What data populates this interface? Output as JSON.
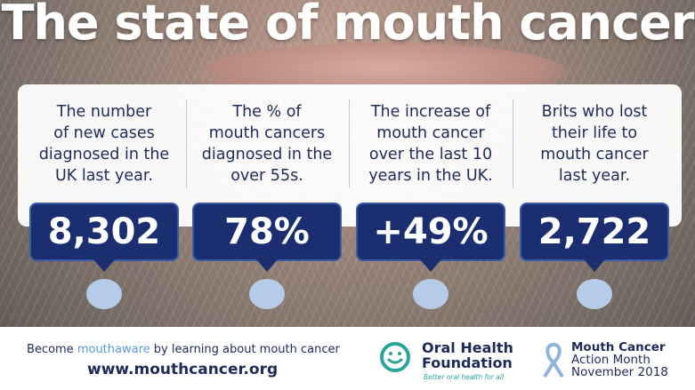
{
  "header": {
    "title": "The state of mouth cancer"
  },
  "stats": [
    {
      "description": [
        "The number",
        "of new cases",
        "diagnosed in the",
        "UK last year."
      ],
      "value": "8,302"
    },
    {
      "description": [
        "The % of",
        "mouth cancers",
        "diagnosed in the",
        "over 55s."
      ],
      "value": "78%"
    },
    {
      "description": [
        "The increase of",
        "mouth cancer",
        "over the last 10",
        "years in the UK."
      ],
      "value": "+49%"
    },
    {
      "description": [
        "Brits who lost",
        "their life to",
        "mouth cancer",
        "last year."
      ],
      "value": "2,722"
    }
  ],
  "footer": {
    "tagline": [
      "Become",
      "mouthaware",
      "by learning about mouth cancer"
    ],
    "url": "www.mouthcancer.org",
    "ohf": {
      "name": [
        "Oral Health",
        "Foundation"
      ],
      "slogan": "Better oral health for all"
    },
    "campaign": [
      "Mouth Cancer",
      "Action Month",
      "November 2018"
    ]
  }
}
